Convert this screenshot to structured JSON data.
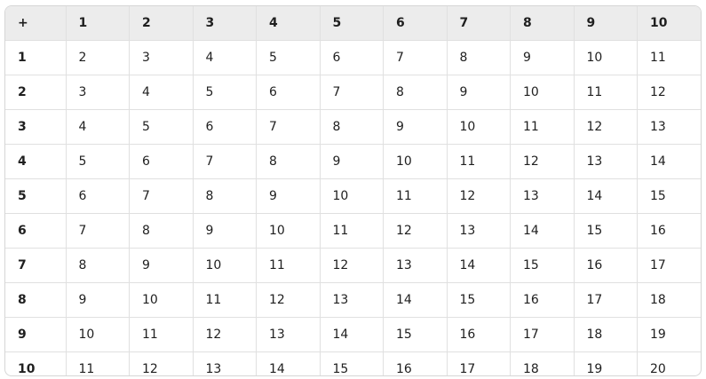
{
  "table": {
    "header": [
      "+",
      "1",
      "2",
      "3",
      "4",
      "5",
      "6",
      "7",
      "8",
      "9",
      "10"
    ],
    "rows": [
      [
        "1",
        "2",
        "3",
        "4",
        "5",
        "6",
        "7",
        "8",
        "9",
        "10",
        "11"
      ],
      [
        "2",
        "3",
        "4",
        "5",
        "6",
        "7",
        "8",
        "9",
        "10",
        "11",
        "12"
      ],
      [
        "3",
        "4",
        "5",
        "6",
        "7",
        "8",
        "9",
        "10",
        "11",
        "12",
        "13"
      ],
      [
        "4",
        "5",
        "6",
        "7",
        "8",
        "9",
        "10",
        "11",
        "12",
        "13",
        "14"
      ],
      [
        "5",
        "6",
        "7",
        "8",
        "9",
        "10",
        "11",
        "12",
        "13",
        "14",
        "15"
      ],
      [
        "6",
        "7",
        "8",
        "9",
        "10",
        "11",
        "12",
        "13",
        "14",
        "15",
        "16"
      ],
      [
        "7",
        "8",
        "9",
        "10",
        "11",
        "12",
        "13",
        "14",
        "15",
        "16",
        "17"
      ],
      [
        "8",
        "9",
        "10",
        "11",
        "12",
        "13",
        "14",
        "15",
        "16",
        "17",
        "18"
      ],
      [
        "9",
        "10",
        "11",
        "12",
        "13",
        "14",
        "15",
        "16",
        "17",
        "18",
        "19"
      ],
      [
        "10",
        "11",
        "12",
        "13",
        "14",
        "15",
        "16",
        "17",
        "18",
        "19",
        "20"
      ]
    ]
  }
}
